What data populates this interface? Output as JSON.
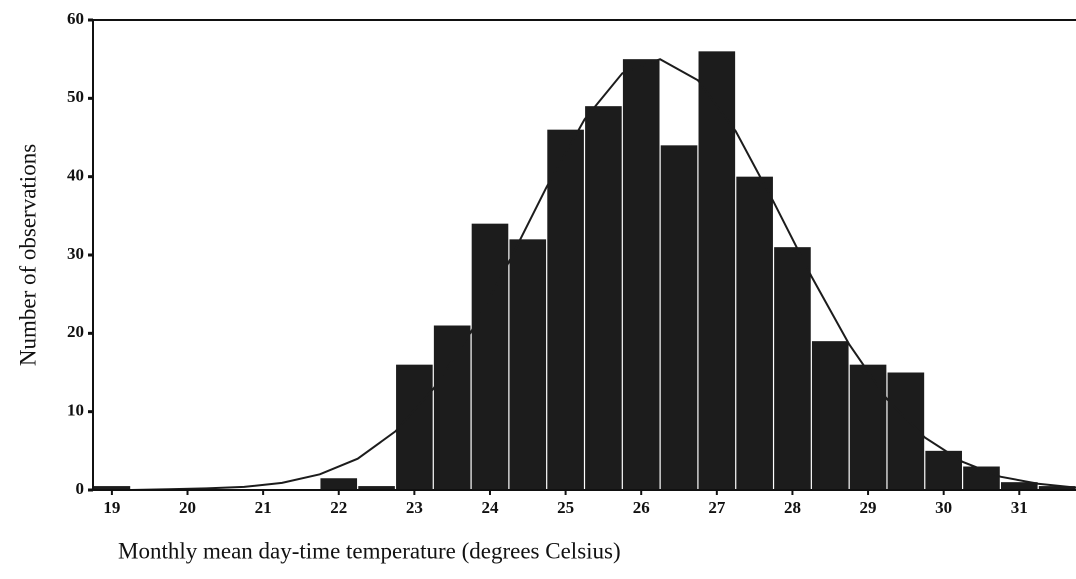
{
  "chart_data": {
    "type": "histogram",
    "xlabel": "Monthly mean day-time temperature (degrees Celsius)",
    "ylabel": "Number of observations",
    "bins": [
      18.75,
      19.25,
      19.75,
      20.25,
      20.75,
      21.25,
      21.75,
      22.25,
      22.75,
      23.25,
      23.75,
      24.25,
      24.75,
      25.25,
      25.75,
      26.25,
      26.75,
      27.25,
      27.75,
      28.25,
      28.75,
      29.25,
      29.75,
      30.25,
      30.75,
      31.25,
      31.75
    ],
    "values": [
      0.5,
      0,
      0,
      0,
      0,
      0,
      1.5,
      0.5,
      16,
      21,
      34,
      32,
      46,
      49,
      55,
      44,
      56,
      40,
      31,
      19,
      16,
      15,
      5,
      3,
      1,
      0.5
    ],
    "color": "#1c1c1c",
    "curve": {
      "color": "#1c1c1c",
      "x": [
        18.75,
        19.25,
        19.75,
        20.25,
        20.75,
        21.25,
        21.75,
        22.25,
        22.75,
        23.25,
        23.75,
        24.25,
        24.75,
        25.25,
        25.75,
        26.25,
        26.75,
        27.25,
        27.75,
        28.25,
        28.75,
        29.25,
        29.75,
        30.25,
        30.75,
        31.25,
        31.75
      ],
      "y": [
        0,
        0,
        0.1,
        0.2,
        0.4,
        0.9,
        2,
        4,
        7.5,
        12.9,
        20.2,
        29.1,
        38.7,
        47.3,
        53.2,
        55,
        52.3,
        45.8,
        36.8,
        27.3,
        18.6,
        11.6,
        6.7,
        3.6,
        1.7,
        0.8,
        0.3
      ]
    },
    "xlim": [
      18.75,
      31.75
    ],
    "xticks": [
      19,
      20,
      21,
      22,
      23,
      24,
      25,
      26,
      27,
      28,
      29,
      30,
      31
    ],
    "ylim": [
      0,
      60
    ],
    "yticks": [
      0,
      10,
      20,
      30,
      40,
      50,
      60
    ]
  }
}
